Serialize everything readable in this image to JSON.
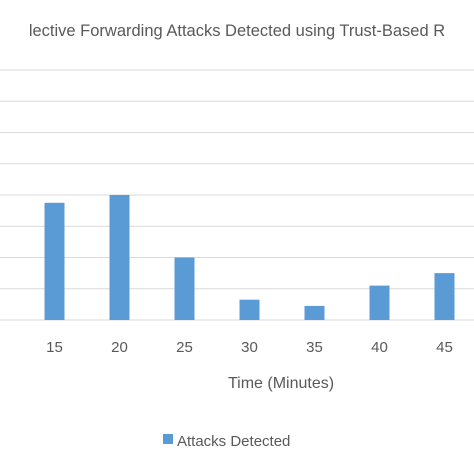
{
  "chart_data": {
    "type": "bar",
    "title": "lective Forwarding Attacks Detected using Trust-Based R",
    "categories": [
      "15",
      "20",
      "25",
      "30",
      "35",
      "40",
      "45"
    ],
    "series": [
      {
        "name": "Attacks Detected",
        "values": [
          3.75,
          4.0,
          2.0,
          0.65,
          0.45,
          1.1,
          1.5
        ],
        "color": "#5b9bd5"
      }
    ],
    "xlabel": "Time (Minutes)",
    "ylabel": "",
    "ylim": [
      0,
      8
    ],
    "grid": true,
    "legend": "bottom",
    "gridline_color": "#d9d9d9",
    "text_color": "#595959"
  }
}
